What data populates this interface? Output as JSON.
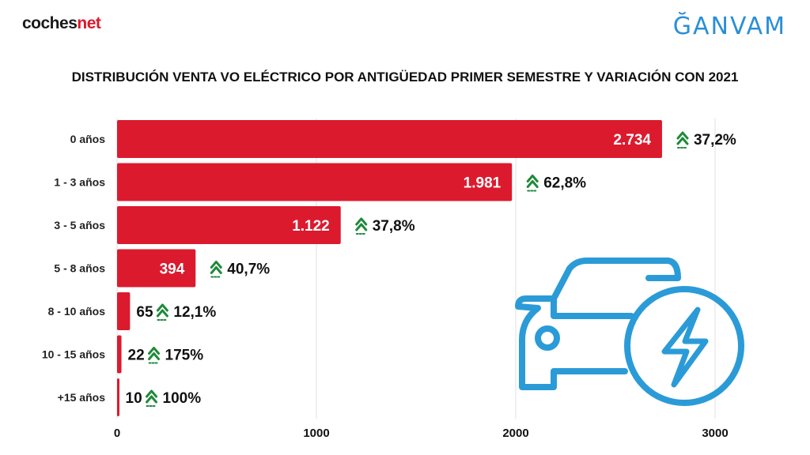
{
  "header": {
    "logo_left_part1": "coches",
    "logo_left_part2": "net",
    "logo_right": "ĞANVAM"
  },
  "colors": {
    "bar": "#dc1a2e",
    "arrow": "#1f8a3a",
    "car_icon": "#2b9bd8",
    "grid": "#e2e2e2"
  },
  "icons": {
    "variation": "double-chevron-up-icon",
    "illustration": "electric-car-icon"
  },
  "chart_data": {
    "type": "bar",
    "orientation": "horizontal",
    "title": "DISTRIBUCIÓN VENTA VO ELÉCTRICO POR ANTIGÜEDAD PRIMER SEMESTRE Y VARIACIÓN CON 2021",
    "categories": [
      "0 años",
      "1 - 3 años",
      "3 - 5 años",
      "5 - 8 años",
      "8 - 10 años",
      "10 - 15 años",
      "+15 años"
    ],
    "values": [
      2734,
      1981,
      1122,
      394,
      65,
      22,
      10
    ],
    "value_labels": [
      "2.734",
      "1.981",
      "1.122",
      "394",
      "65",
      "22",
      "10"
    ],
    "variation_labels": [
      "37,2%",
      "62,8%",
      "37,8%",
      "40,7%",
      "12,1%",
      "175%",
      "100%"
    ],
    "xlim": [
      0,
      3000
    ],
    "x_ticks": [
      0,
      1000,
      2000,
      3000
    ],
    "x_tick_labels": [
      "0",
      "1000",
      "2000",
      "3000"
    ],
    "xlabel": "",
    "ylabel": "",
    "grid": true
  }
}
